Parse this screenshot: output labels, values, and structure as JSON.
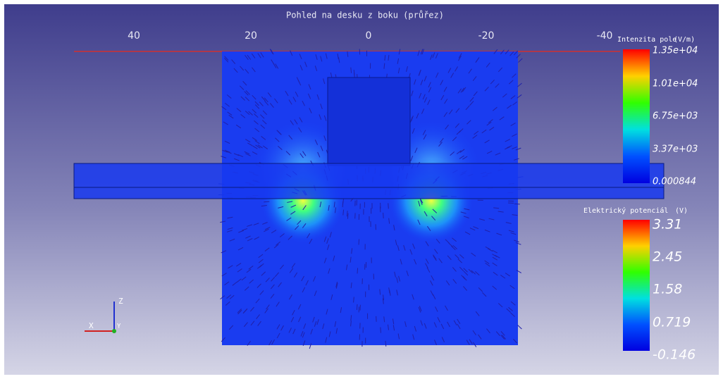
{
  "title": "Pohled na desku z boku (průřez)",
  "ruler": {
    "ticks": [
      "40",
      "20",
      "0",
      "-20",
      "-40"
    ]
  },
  "field_bar": {
    "title": "Intenzita pole",
    "unit": "(V/m)",
    "labels": [
      "1.35e+04",
      "1.01e+04",
      "6.75e+03",
      "3.37e+03",
      "0.000844"
    ]
  },
  "potential_bar": {
    "title": "Elektrický potenciál",
    "unit": "(V)",
    "labels": [
      "3.31",
      "2.45",
      "1.58",
      "0.719",
      "-0.146"
    ]
  },
  "triad": {
    "z": "Z",
    "x": "X",
    "y": "Y"
  }
}
